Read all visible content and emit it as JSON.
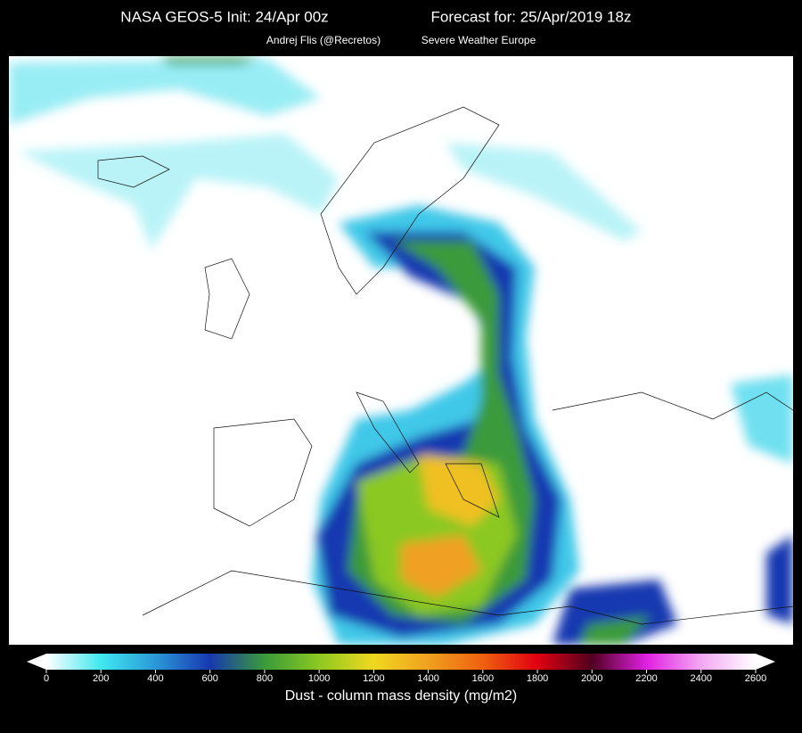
{
  "header": {
    "title_left": "NASA GEOS-5  Init: 24/Apr 00z",
    "title_right": "Forecast for: 25/Apr/2019 18z",
    "author": "Andrej Flis (@Recretos)",
    "site": "Severe Weather Europe"
  },
  "colorbar": {
    "label": "Dust - column mass density (mg/m2)",
    "range": [
      0,
      2600
    ],
    "ticks": [
      0,
      200,
      400,
      600,
      800,
      1000,
      1200,
      1400,
      1600,
      1800,
      2000,
      2200,
      2400,
      2600
    ],
    "colors": [
      "#ffffff",
      "#40e8f0",
      "#2a98d8",
      "#1838b0",
      "#3a9a3a",
      "#8cc820",
      "#f0d820",
      "#f0a020",
      "#f06010",
      "#e00010",
      "#500020",
      "#e020e0",
      "#f4a8f4",
      "#ffffff"
    ]
  }
}
